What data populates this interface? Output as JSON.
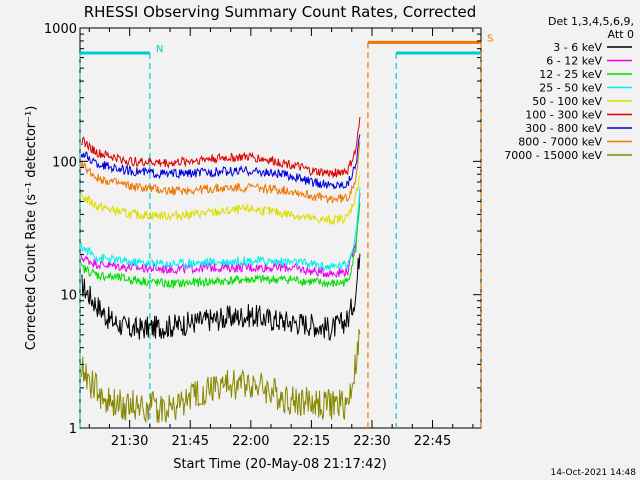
{
  "chart_data": {
    "type": "line",
    "title": "RHESSI Observing Summary Count Rates, Corrected",
    "xlabel": "Start Time (20-May-08 21:17:42)",
    "ylabel": "Corrected Count Rate (s⁻¹ detector⁻¹)",
    "y_scale": "log",
    "ylim": [
      1,
      1000
    ],
    "xlim": [
      "21:17:42",
      "22:57:00"
    ],
    "x_ticks": [
      "21:30",
      "21:45",
      "22:00",
      "22:15",
      "22:30",
      "22:45"
    ],
    "y_ticks": [
      "1",
      "10",
      "100",
      "1000"
    ],
    "legend_title": [
      "Det 1,3,4,5,6,9,",
      "Att 0"
    ],
    "legend_position": "right",
    "footer": "14-Oct-2021 14:48",
    "series": [
      {
        "name": "3 - 6 keV",
        "color": "#000000",
        "x": [
          "21:18",
          "21:21",
          "21:25",
          "21:30",
          "21:40",
          "21:50",
          "22:00",
          "22:05",
          "22:15",
          "22:20",
          "22:24",
          "22:26",
          "22:27"
        ],
        "y": [
          12,
          9,
          6.5,
          5.5,
          5.8,
          6.5,
          7,
          6.5,
          6,
          5.5,
          6.5,
          10,
          22
        ]
      },
      {
        "name": "6 - 12 keV",
        "color": "#ee00ee",
        "x": [
          "21:18",
          "21:22",
          "21:30",
          "21:40",
          "21:50",
          "22:00",
          "22:10",
          "22:15",
          "22:20",
          "22:24",
          "22:26",
          "22:27"
        ],
        "y": [
          19,
          17,
          16,
          15.5,
          16,
          16,
          16,
          15,
          14.5,
          15,
          25,
          55
        ]
      },
      {
        "name": "12 - 25 keV",
        "color": "#00dd00",
        "x": [
          "21:18",
          "21:22",
          "21:30",
          "21:40",
          "21:50",
          "22:00",
          "22:10",
          "22:15",
          "22:20",
          "22:24",
          "22:26",
          "22:27"
        ],
        "y": [
          16,
          14,
          13,
          12,
          12.5,
          13,
          13,
          12.5,
          12,
          12.5,
          22,
          50
        ]
      },
      {
        "name": "25 - 50 keV",
        "color": "#00eeee",
        "x": [
          "21:18",
          "21:22",
          "21:30",
          "21:40",
          "21:50",
          "22:00",
          "22:10",
          "22:15",
          "22:20",
          "22:24",
          "22:26",
          "22:27"
        ],
        "y": [
          23,
          19,
          17.5,
          17,
          17.5,
          18,
          17.5,
          17,
          16,
          17,
          28,
          60
        ]
      },
      {
        "name": "50 - 100 keV",
        "color": "#dddd00",
        "x": [
          "21:18",
          "21:22",
          "21:30",
          "21:40",
          "21:50",
          "22:00",
          "22:10",
          "22:15",
          "22:20",
          "22:24",
          "22:26",
          "22:27"
        ],
        "y": [
          55,
          46,
          40,
          39,
          41,
          44,
          40,
          37,
          36,
          38,
          55,
          80
        ]
      },
      {
        "name": "100 - 300 keV",
        "color": "#dd0000",
        "x": [
          "21:18",
          "21:22",
          "21:30",
          "21:40",
          "21:50",
          "22:00",
          "22:10",
          "22:15",
          "22:20",
          "22:24",
          "22:26",
          "22:27"
        ],
        "y": [
          145,
          115,
          100,
          97,
          105,
          108,
          95,
          84,
          81,
          85,
          120,
          200
        ]
      },
      {
        "name": "300 - 800 keV",
        "color": "#0000dd",
        "x": [
          "21:18",
          "21:22",
          "21:30",
          "21:40",
          "21:50",
          "22:00",
          "22:10",
          "22:15",
          "22:20",
          "22:24",
          "22:26",
          "22:27"
        ],
        "y": [
          115,
          95,
          85,
          80,
          83,
          85,
          78,
          70,
          66,
          68,
          95,
          160
        ]
      },
      {
        "name": "800 - 7000 keV",
        "color": "#ee7700",
        "x": [
          "21:18",
          "21:22",
          "21:30",
          "21:40",
          "21:50",
          "22:00",
          "22:10",
          "22:15",
          "22:20",
          "22:24",
          "22:26",
          "22:27"
        ],
        "y": [
          95,
          75,
          65,
          60,
          62,
          64,
          60,
          55,
          52,
          53,
          75,
          130
        ]
      },
      {
        "name": "7000 - 15000 keV",
        "color": "#888800",
        "x": [
          "21:18",
          "21:20",
          "21:25",
          "21:30",
          "21:40",
          "21:50",
          "22:00",
          "22:10",
          "22:20",
          "22:24",
          "22:26",
          "22:27"
        ],
        "y": [
          3,
          2.2,
          1.5,
          1.5,
          1.4,
          2,
          2.2,
          1.6,
          1.5,
          1.5,
          3,
          5
        ]
      }
    ],
    "annotations": [
      {
        "label": "N",
        "color": "#00cccc",
        "x_start": "21:17:42",
        "x_end": "21:35:00",
        "level": 650
      },
      {
        "label": "",
        "color": "#00cccc",
        "x_start": "22:36:00",
        "x_end": "22:57:00",
        "level": 650
      },
      {
        "label": "S",
        "color": "#ee7700",
        "x_start": "22:29:00",
        "x_end": "22:57:00",
        "level": 780
      }
    ]
  }
}
